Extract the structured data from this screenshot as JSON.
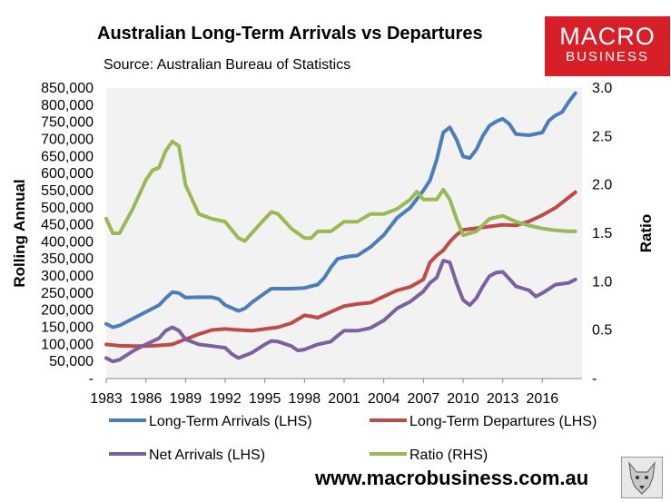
{
  "header": {
    "title": "Australian Long-Term Arrivals vs Departures",
    "source": "Source: Australian Bureau of Statistics"
  },
  "logo": {
    "line1": "MACRO",
    "line2": "BUSINESS"
  },
  "footer": {
    "website": "www.macrobusiness.com.au"
  },
  "colors": {
    "arrivals": "#4a7ebb",
    "departures": "#be4b48",
    "net": "#7d60a0",
    "ratio": "#98b954"
  },
  "chart_data": {
    "type": "line",
    "title": "Australian Long-Term Arrivals vs Departures",
    "ylabel": "Rolling Annual",
    "y2label": "Ratio",
    "xlabel": "",
    "ylim": [
      0,
      850000
    ],
    "y2lim": [
      0,
      3.0
    ],
    "xlim": [
      1983,
      2019
    ],
    "x_ticks": [
      "1983",
      "1986",
      "1989",
      "1992",
      "1995",
      "1998",
      "2001",
      "2004",
      "2007",
      "2010",
      "2013",
      "2016"
    ],
    "y_ticks": [
      "-",
      "50,000",
      "100,000",
      "150,000",
      "200,000",
      "250,000",
      "300,000",
      "350,000",
      "400,000",
      "450,000",
      "500,000",
      "550,000",
      "600,000",
      "650,000",
      "700,000",
      "750,000",
      "800,000",
      "850,000"
    ],
    "y2_ticks": [
      "-",
      "0.5",
      "1.0",
      "1.5",
      "2.0",
      "2.5",
      "3.0"
    ],
    "legend": "bottom",
    "series": [
      {
        "name": "Long-Term Arrivals (LHS)",
        "axis": "left",
        "color": "#4a7ebb",
        "x": [
          1983,
          1983.5,
          1984,
          1985,
          1986,
          1987,
          1987.5,
          1988,
          1988.5,
          1989,
          1990,
          1991,
          1991.5,
          1992,
          1993,
          1993.5,
          1994,
          1995,
          1995.5,
          1996,
          1997,
          1998,
          1999,
          1999.5,
          2000,
          2000.5,
          2001,
          2001.5,
          2002,
          2003,
          2004,
          2005,
          2006,
          2007,
          2007.5,
          2008,
          2008.5,
          2009,
          2009.5,
          2010,
          2010.5,
          2011,
          2011.5,
          2012,
          2012.5,
          2013,
          2013.5,
          2014,
          2015,
          2016,
          2016.5,
          2017,
          2017.5,
          2018,
          2018.5
        ],
        "y": [
          160000,
          150000,
          155000,
          175000,
          195000,
          215000,
          235000,
          253000,
          250000,
          237000,
          238000,
          238000,
          233000,
          215000,
          198000,
          205000,
          222000,
          250000,
          263000,
          263000,
          263000,
          265000,
          275000,
          295000,
          325000,
          350000,
          355000,
          358000,
          360000,
          385000,
          420000,
          470000,
          500000,
          550000,
          580000,
          640000,
          720000,
          735000,
          700000,
          650000,
          645000,
          670000,
          710000,
          740000,
          752000,
          760000,
          745000,
          715000,
          712000,
          720000,
          755000,
          770000,
          780000,
          810000,
          835000
        ]
      },
      {
        "name": "Long-Term Departures (LHS)",
        "axis": "left",
        "color": "#be4b48",
        "x": [
          1983,
          1984,
          1985,
          1986,
          1987,
          1988,
          1989,
          1990,
          1991,
          1992,
          1993,
          1994,
          1995,
          1996,
          1997,
          1998,
          1998.5,
          1999,
          2000,
          2001,
          2002,
          2003,
          2004,
          2005,
          2006,
          2007,
          2007.5,
          2008,
          2008.5,
          2009,
          2009.5,
          2010,
          2011,
          2012,
          2013,
          2014,
          2015,
          2016,
          2017,
          2018,
          2018.5
        ],
        "y": [
          100000,
          96000,
          95000,
          95000,
          97000,
          100000,
          115000,
          130000,
          142000,
          145000,
          142000,
          140000,
          145000,
          150000,
          162000,
          185000,
          182000,
          178000,
          195000,
          212000,
          218000,
          222000,
          240000,
          258000,
          268000,
          290000,
          340000,
          360000,
          375000,
          400000,
          420000,
          435000,
          440000,
          445000,
          450000,
          448000,
          460000,
          478000,
          500000,
          530000,
          545000
        ]
      },
      {
        "name": "Net Arrivals (LHS)",
        "axis": "left",
        "color": "#7d60a0",
        "x": [
          1983,
          1983.5,
          1984,
          1985,
          1986,
          1987,
          1987.5,
          1988,
          1988.5,
          1989,
          1990,
          1991,
          1992,
          1992.5,
          1993,
          1994,
          1995,
          1995.5,
          1996,
          1997,
          1997.5,
          1998,
          1999,
          2000,
          2000.5,
          2001,
          2002,
          2003,
          2004,
          2005,
          2006,
          2007,
          2007.5,
          2008,
          2008.5,
          2009,
          2009.5,
          2010,
          2010.5,
          2011,
          2011.5,
          2012,
          2012.5,
          2013,
          2013.5,
          2014,
          2015,
          2015.5,
          2016,
          2017,
          2018,
          2018.5
        ],
        "y": [
          60000,
          50000,
          55000,
          80000,
          100000,
          118000,
          140000,
          150000,
          140000,
          115000,
          100000,
          95000,
          90000,
          72000,
          60000,
          75000,
          100000,
          110000,
          108000,
          95000,
          82000,
          85000,
          100000,
          108000,
          125000,
          140000,
          140000,
          148000,
          170000,
          205000,
          225000,
          255000,
          280000,
          295000,
          345000,
          340000,
          280000,
          230000,
          215000,
          235000,
          270000,
          300000,
          310000,
          312000,
          292000,
          270000,
          258000,
          240000,
          250000,
          275000,
          280000,
          290000
        ]
      },
      {
        "name": "Ratio (RHS)",
        "axis": "right",
        "color": "#98b954",
        "x": [
          1983,
          1983.5,
          1984,
          1985,
          1986,
          1986.5,
          1987,
          1987.5,
          1988,
          1988.5,
          1989,
          1990,
          1991,
          1992,
          1993,
          1993.5,
          1994,
          1995,
          1995.5,
          1996,
          1997,
          1998,
          1998.5,
          1999,
          2000,
          2001,
          2002,
          2003,
          2004,
          2005,
          2006,
          2006.5,
          2007,
          2008,
          2008.5,
          2009,
          2009.5,
          2010,
          2011,
          2012,
          2013,
          2014,
          2015,
          2016,
          2017,
          2018,
          2018.5
        ],
        "y": [
          1.65,
          1.5,
          1.5,
          1.75,
          2.05,
          2.15,
          2.18,
          2.35,
          2.45,
          2.4,
          2.0,
          1.7,
          1.65,
          1.62,
          1.45,
          1.42,
          1.5,
          1.65,
          1.72,
          1.7,
          1.55,
          1.45,
          1.45,
          1.52,
          1.52,
          1.62,
          1.62,
          1.7,
          1.7,
          1.75,
          1.85,
          1.93,
          1.85,
          1.85,
          1.95,
          1.85,
          1.65,
          1.48,
          1.52,
          1.65,
          1.68,
          1.62,
          1.58,
          1.55,
          1.53,
          1.52,
          1.52
        ]
      }
    ]
  }
}
